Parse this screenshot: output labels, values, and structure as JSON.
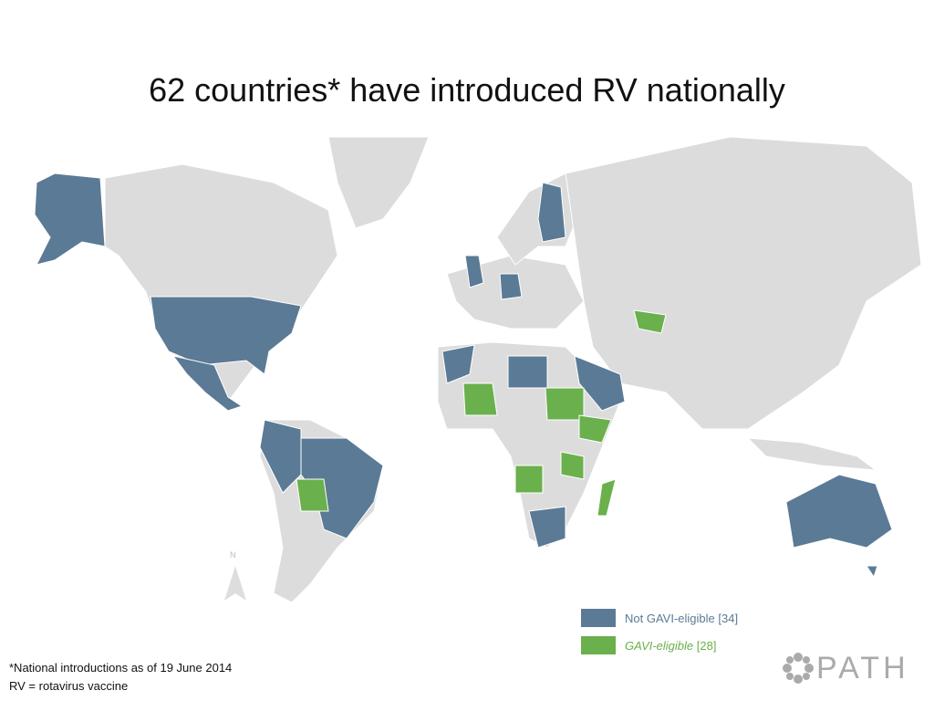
{
  "title": "62 countries* have introduced RV nationally",
  "legend": {
    "items": [
      {
        "label": "Not GAVI-eligible",
        "count": "[34]",
        "color": "#5b7a95"
      },
      {
        "label": "GAVI-eligible",
        "count": "[28]",
        "color": "#6ab04c"
      }
    ]
  },
  "compass": "N",
  "footnotes": [
    "*National introductions as of 19 June 2014",
    "RV = rotavirus vaccine"
  ],
  "logo": "PATH"
}
